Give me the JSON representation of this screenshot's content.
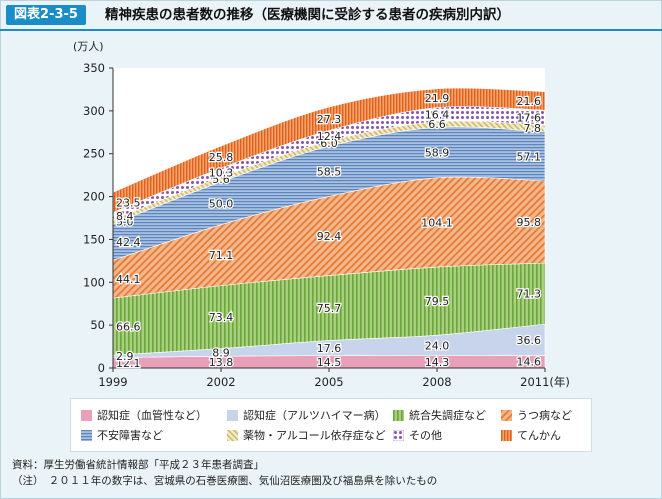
{
  "figure": {
    "badge": "図表2-3-5",
    "title": "精神疾患の患者数の推移（医療機関に受診する患者の疾病別内訳）"
  },
  "chart_data": {
    "type": "area",
    "stacked": true,
    "ylabel": "(万人)",
    "ylim": [
      0,
      350
    ],
    "yticks": [
      0,
      50,
      100,
      150,
      200,
      250,
      300,
      350
    ],
    "x": [
      1999,
      2002,
      2005,
      2008,
      2011
    ],
    "x_tick_labels": [
      "1999",
      "2002",
      "2005",
      "2008",
      "2011(年)"
    ],
    "grid": false,
    "legend_position": "bottom",
    "series": [
      {
        "name": "認知症（血管性など）",
        "values": [
          12.1,
          13.8,
          14.5,
          14.3,
          14.6
        ],
        "color": "#e8a0b8",
        "pattern": "solid"
      },
      {
        "name": "認知症（アルツハイマー病）",
        "values": [
          2.9,
          8.9,
          17.6,
          24.0,
          36.6
        ],
        "color": "#c8d4ec",
        "pattern": "solid"
      },
      {
        "name": "統合失調症など",
        "values": [
          66.6,
          73.4,
          75.7,
          79.5,
          71.3
        ],
        "color": "#8cc057",
        "pattern": "vlines"
      },
      {
        "name": "うつ病など",
        "values": [
          44.1,
          71.1,
          92.4,
          104.1,
          95.8
        ],
        "color": "#ec9a5e",
        "pattern": "diag"
      },
      {
        "name": "不安障害など",
        "values": [
          42.4,
          50.0,
          58.5,
          58.9,
          57.1
        ],
        "color": "#7da0cc",
        "pattern": "hlines"
      },
      {
        "name": "薬物・アルコール依存症など",
        "values": [
          5.0,
          5.6,
          6.0,
          6.6,
          7.8
        ],
        "color": "#e6d696",
        "pattern": "diag2"
      },
      {
        "name": "その他",
        "values": [
          8.4,
          10.3,
          12.4,
          16.4,
          17.6
        ],
        "color": "#9a6ab8",
        "pattern": "dots"
      },
      {
        "name": "てんかん",
        "values": [
          23.5,
          25.8,
          27.3,
          21.9,
          21.6
        ],
        "color": "#e86d2a",
        "pattern": "vlines-dense"
      }
    ]
  },
  "footnotes": {
    "source": "資料：厚生労働省統計情報部「平成２３年患者調査」",
    "note": "（注）　２０１１年の数字は、宮城県の石巻医療圏、気仙沼医療圏及び福島県を除いたもの"
  }
}
